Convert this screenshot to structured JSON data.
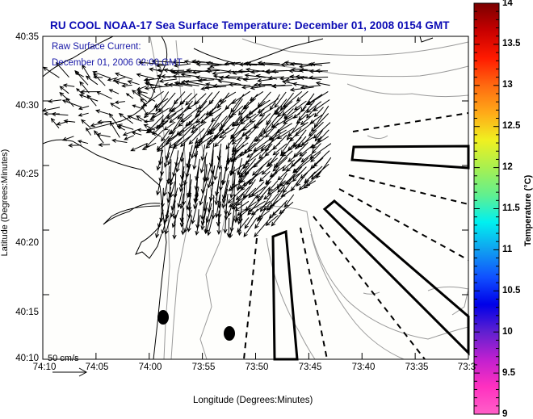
{
  "chart_data": {
    "type": "map",
    "title": "RU COOL  NOAA-17  Sea Surface Temperature:  December 01, 2008 0154 GMT",
    "xlabel": "Longitude (Degrees:Minutes)",
    "ylabel": "Latitude (Degrees:Minutes)",
    "x_ticks": [
      "74:10",
      "74:05",
      "74:00",
      "73:55",
      "73:50",
      "73:45",
      "73:40",
      "73:35",
      "73:3"
    ],
    "y_ticks": [
      "40:35",
      "40:30",
      "40:25",
      "40:20",
      "40:15",
      "40:10"
    ],
    "xlim": [
      "74:10",
      "73:30"
    ],
    "ylim": [
      "40:10",
      "40:35"
    ],
    "annotations": [
      "Raw Surface Current:",
      "December 01, 2006 02:00 GMT"
    ],
    "scale_vector": {
      "label": "50 cm/s",
      "value_cm_s": 50
    },
    "colorbar": {
      "title": "Temperature (°C)",
      "range": [
        9,
        14
      ],
      "ticks": [
        "14",
        "13.5",
        "13",
        "12.5",
        "12",
        "11.5",
        "11",
        "10.5",
        "10",
        "9.5",
        "9"
      ],
      "colors": [
        "#7a0000",
        "#c80000",
        "#ff1a00",
        "#ff6a10",
        "#ffaa18",
        "#f0f020",
        "#a8f050",
        "#60f090",
        "#00f0f0",
        "#10a0f0",
        "#1050ff",
        "#0000e8",
        "#6020d0",
        "#c020d0",
        "#ff30c0",
        "#ff60c8"
      ]
    },
    "grid": false,
    "features": {
      "current_vectors": "dense southwestward surface current field (Lower NY Harbor / Raritan Bay approaches)",
      "markers": [
        {
          "type": "filled-ellipse",
          "lon": "73:58.8",
          "lat": "40:14.6"
        },
        {
          "type": "filled-ellipse",
          "lon": "73:54.3",
          "lat": "40:13.5"
        }
      ],
      "shipping_lanes": [
        "solid outline lanes",
        "dashed separation lines"
      ],
      "bathymetry_contours": "gray"
    }
  }
}
